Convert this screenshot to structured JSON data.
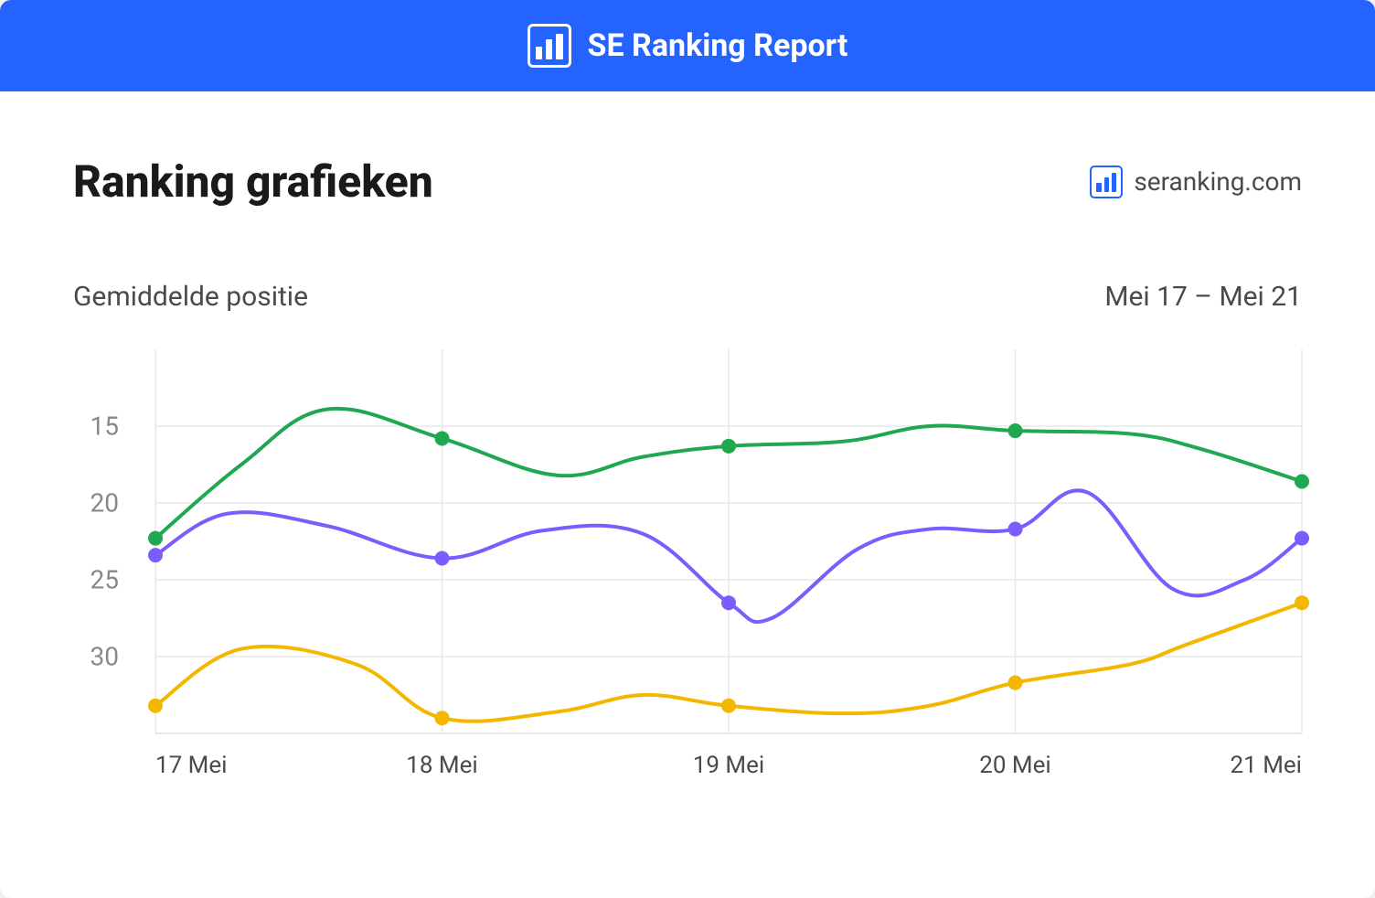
{
  "header": {
    "title": "SE Ranking Report"
  },
  "page": {
    "title": "Ranking grafieken",
    "brand_text": "seranking.com"
  },
  "chart": {
    "type": "line",
    "subtitle": "Gemiddelde positie",
    "date_range": "Mei 17 – Mei 21",
    "background_color": "#ffffff",
    "grid_color": "#e8e8e8",
    "axis_label_color": "#888888",
    "x_label_color": "#4a4a4a",
    "label_fontsize": 28,
    "y_axis": {
      "min": 10,
      "max": 35,
      "inverted": true,
      "ticks": [
        15,
        20,
        25,
        30
      ]
    },
    "x_axis": {
      "categories": [
        "17 Mei",
        "18 Mei",
        "19 Mei",
        "20 Mei",
        "21 Mei"
      ]
    },
    "series": [
      {
        "name": "green",
        "color": "#1fa850",
        "line_width": 4,
        "marker_radius": 8,
        "points": [
          22.3,
          15.8,
          16.3,
          15.3,
          18.6
        ],
        "curve": [
          [
            0,
            22.3
          ],
          [
            0.3,
            17.5
          ],
          [
            0.6,
            13.9
          ],
          [
            1,
            15.8
          ],
          [
            1.4,
            18.2
          ],
          [
            1.7,
            17.0
          ],
          [
            2,
            16.3
          ],
          [
            2.4,
            16.0
          ],
          [
            2.7,
            15.0
          ],
          [
            3,
            15.3
          ],
          [
            3.4,
            15.5
          ],
          [
            3.65,
            16.5
          ],
          [
            4,
            18.6
          ]
        ]
      },
      {
        "name": "purple",
        "color": "#7c5cff",
        "line_width": 4,
        "marker_radius": 8,
        "points": [
          23.4,
          23.6,
          26.5,
          21.7,
          22.3
        ],
        "curve": [
          [
            0,
            23.4
          ],
          [
            0.25,
            20.7
          ],
          [
            0.6,
            21.5
          ],
          [
            1,
            23.6
          ],
          [
            1.35,
            21.8
          ],
          [
            1.7,
            22.0
          ],
          [
            2,
            26.5
          ],
          [
            2.15,
            27.5
          ],
          [
            2.45,
            23.0
          ],
          [
            2.7,
            21.7
          ],
          [
            3,
            21.7
          ],
          [
            3.25,
            19.3
          ],
          [
            3.55,
            25.6
          ],
          [
            3.8,
            25.0
          ],
          [
            4,
            22.3
          ]
        ]
      },
      {
        "name": "yellow",
        "color": "#f3b700",
        "line_width": 4,
        "marker_radius": 8,
        "points": [
          33.2,
          34.0,
          33.2,
          31.7,
          26.5
        ],
        "curve": [
          [
            0,
            33.2
          ],
          [
            0.3,
            29.5
          ],
          [
            0.7,
            30.5
          ],
          [
            1,
            34.0
          ],
          [
            1.4,
            33.6
          ],
          [
            1.7,
            32.5
          ],
          [
            2,
            33.2
          ],
          [
            2.4,
            33.7
          ],
          [
            2.7,
            33.2
          ],
          [
            3,
            31.7
          ],
          [
            3.4,
            30.5
          ],
          [
            3.6,
            29.2
          ],
          [
            4,
            26.5
          ]
        ]
      }
    ]
  }
}
